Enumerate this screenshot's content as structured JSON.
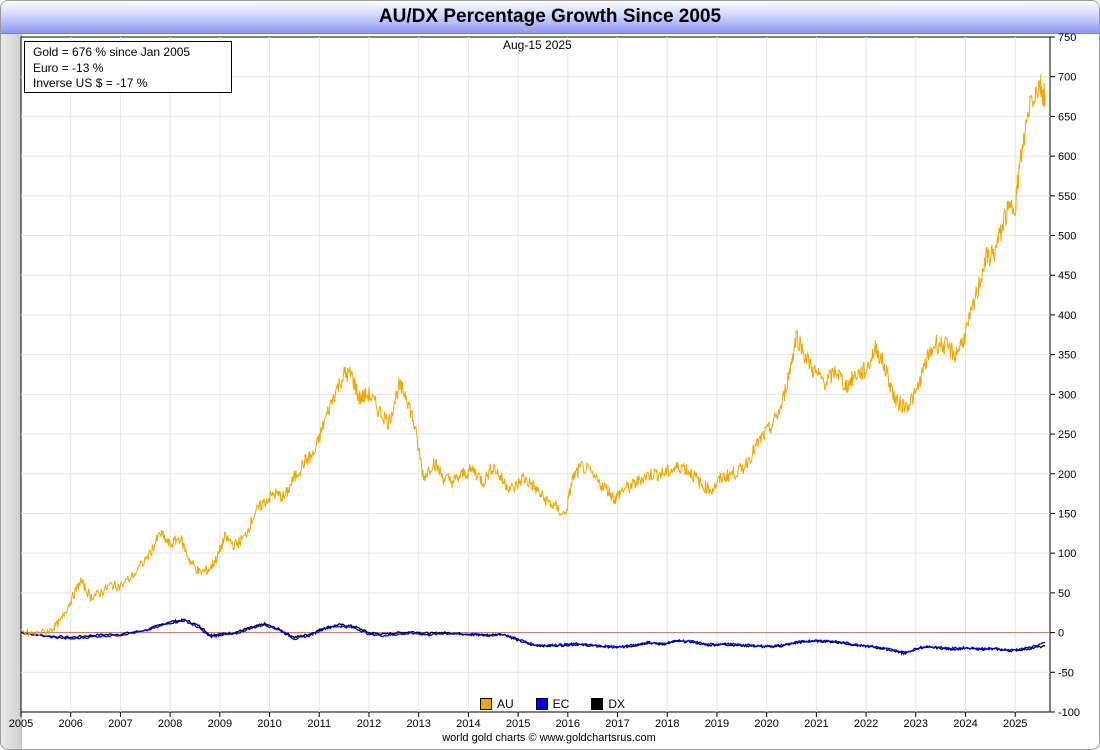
{
  "title": "AU/DX Percentage Growth Since 2005",
  "date": "Aug-15  2025",
  "info_box": {
    "line1": "Gold = 676 % since Jan 2005",
    "line2": "Euro = -13 %",
    "line3": "Inverse US $ = -17 %"
  },
  "footer": "world gold charts © www.goldchartsrus.com",
  "colors": {
    "AU": "#f0a800",
    "EC": "#0000ee",
    "DX": "#000000",
    "zero_line": "#c07070",
    "grid": "#e2e8ec"
  },
  "chart_data": {
    "type": "line",
    "title": "AU/DX Percentage Growth Since 2005",
    "xlabel": "",
    "ylabel": "",
    "xlim": [
      2005,
      2025.7
    ],
    "ylim": [
      -100,
      750
    ],
    "y_ticks": [
      -100,
      -50,
      0,
      50,
      100,
      150,
      200,
      250,
      300,
      350,
      400,
      450,
      500,
      550,
      600,
      650,
      700,
      750
    ],
    "x_ticks": [
      "2005",
      "2006",
      "2007",
      "2008",
      "2009",
      "2010",
      "2011",
      "2012",
      "2013",
      "2014",
      "2015",
      "2016",
      "2017",
      "2018",
      "2019",
      "2020",
      "2021",
      "2022",
      "2023",
      "2024",
      "2025"
    ],
    "grid": true,
    "legend_placement": "bottom-center",
    "series": [
      {
        "name": "AU",
        "x": [
          2005.0,
          2005.3,
          2005.6,
          2005.8,
          2006.0,
          2006.2,
          2006.4,
          2006.6,
          2006.8,
          2007.0,
          2007.3,
          2007.6,
          2007.8,
          2008.0,
          2008.2,
          2008.4,
          2008.6,
          2008.8,
          2008.95,
          2009.1,
          2009.3,
          2009.5,
          2009.7,
          2009.9,
          2010.1,
          2010.3,
          2010.5,
          2010.7,
          2010.9,
          2011.1,
          2011.3,
          2011.5,
          2011.65,
          2011.8,
          2012.0,
          2012.2,
          2012.4,
          2012.6,
          2012.75,
          2012.9,
          2013.1,
          2013.3,
          2013.5,
          2013.7,
          2013.9,
          2014.1,
          2014.3,
          2014.5,
          2014.7,
          2014.9,
          2015.1,
          2015.3,
          2015.5,
          2015.7,
          2015.95,
          2016.1,
          2016.3,
          2016.6,
          2016.8,
          2016.95,
          2017.1,
          2017.3,
          2017.5,
          2017.7,
          2017.9,
          2018.1,
          2018.3,
          2018.5,
          2018.7,
          2018.9,
          2019.1,
          2019.3,
          2019.5,
          2019.7,
          2019.9,
          2020.1,
          2020.3,
          2020.5,
          2020.6,
          2020.8,
          2021.0,
          2021.2,
          2021.4,
          2021.6,
          2021.8,
          2022.0,
          2022.2,
          2022.4,
          2022.6,
          2022.8,
          2023.0,
          2023.2,
          2023.4,
          2023.6,
          2023.8,
          2024.0,
          2024.2,
          2024.4,
          2024.6,
          2024.8,
          2025.0,
          2025.1,
          2025.3,
          2025.5,
          2025.6
        ],
        "values": [
          0,
          -2,
          3,
          15,
          40,
          65,
          45,
          50,
          60,
          58,
          75,
          100,
          125,
          110,
          120,
          90,
          75,
          80,
          95,
          120,
          110,
          120,
          150,
          165,
          175,
          170,
          195,
          215,
          225,
          265,
          300,
          325,
          325,
          295,
          300,
          280,
          265,
          310,
          300,
          265,
          195,
          215,
          195,
          190,
          200,
          205,
          190,
          210,
          190,
          180,
          195,
          185,
          170,
          160,
          148,
          195,
          210,
          190,
          180,
          168,
          180,
          185,
          195,
          200,
          200,
          205,
          210,
          200,
          185,
          180,
          195,
          200,
          205,
          225,
          245,
          260,
          285,
          340,
          375,
          345,
          325,
          315,
          330,
          310,
          325,
          330,
          360,
          330,
          290,
          285,
          300,
          340,
          365,
          360,
          350,
          375,
          420,
          470,
          480,
          525,
          540,
          590,
          670,
          690,
          676
        ]
      },
      {
        "name": "EC",
        "x": [
          2005.0,
          2005.5,
          2006.0,
          2006.5,
          2007.0,
          2007.5,
          2008.0,
          2008.3,
          2008.6,
          2008.8,
          2009.0,
          2009.3,
          2009.6,
          2009.9,
          2010.2,
          2010.5,
          2010.8,
          2011.1,
          2011.4,
          2011.7,
          2012.0,
          2012.3,
          2012.6,
          2012.9,
          2013.2,
          2013.5,
          2013.8,
          2014.1,
          2014.4,
          2014.7,
          2015.0,
          2015.3,
          2015.6,
          2015.9,
          2016.2,
          2016.5,
          2016.8,
          2017.0,
          2017.3,
          2017.6,
          2017.9,
          2018.2,
          2018.5,
          2018.8,
          2019.1,
          2019.4,
          2019.7,
          2020.0,
          2020.3,
          2020.6,
          2020.9,
          2021.2,
          2021.5,
          2021.8,
          2022.1,
          2022.4,
          2022.7,
          2022.8,
          2023.1,
          2023.4,
          2023.7,
          2024.0,
          2024.3,
          2024.6,
          2024.9,
          2025.2,
          2025.6
        ],
        "values": [
          0,
          -5,
          -8,
          -5,
          -3,
          2,
          12,
          15,
          5,
          -5,
          -3,
          -2,
          5,
          10,
          3,
          -8,
          -4,
          5,
          8,
          6,
          -2,
          -4,
          -2,
          -1,
          -3,
          -1,
          -2,
          -3,
          -4,
          -2,
          -8,
          -15,
          -16,
          -15,
          -14,
          -16,
          -17,
          -18,
          -16,
          -12,
          -14,
          -10,
          -11,
          -15,
          -14,
          -15,
          -16,
          -17,
          -16,
          -12,
          -10,
          -10,
          -12,
          -15,
          -17,
          -20,
          -24,
          -25,
          -18,
          -18,
          -20,
          -19,
          -20,
          -20,
          -22,
          -20,
          -13
        ]
      },
      {
        "name": "DX",
        "x": [
          2005.0,
          2005.5,
          2006.0,
          2006.5,
          2007.0,
          2007.5,
          2008.0,
          2008.3,
          2008.6,
          2008.8,
          2009.0,
          2009.3,
          2009.6,
          2009.9,
          2010.2,
          2010.5,
          2010.8,
          2011.1,
          2011.4,
          2011.7,
          2012.0,
          2012.3,
          2012.6,
          2012.9,
          2013.2,
          2013.5,
          2013.8,
          2014.1,
          2014.4,
          2014.7,
          2015.0,
          2015.3,
          2015.6,
          2015.9,
          2016.2,
          2016.5,
          2016.8,
          2017.0,
          2017.3,
          2017.6,
          2017.9,
          2018.2,
          2018.5,
          2018.8,
          2019.1,
          2019.4,
          2019.7,
          2020.0,
          2020.3,
          2020.6,
          2020.9,
          2021.2,
          2021.5,
          2021.8,
          2022.1,
          2022.4,
          2022.7,
          2022.8,
          2023.1,
          2023.4,
          2023.7,
          2024.0,
          2024.3,
          2024.6,
          2024.9,
          2025.2,
          2025.6
        ],
        "values": [
          0,
          -4,
          -6,
          -3,
          -2,
          3,
          14,
          16,
          8,
          -3,
          -2,
          0,
          6,
          11,
          4,
          -6,
          -2,
          6,
          10,
          8,
          0,
          -2,
          0,
          1,
          -1,
          0,
          -1,
          -2,
          -3,
          -2,
          -10,
          -16,
          -17,
          -16,
          -15,
          -17,
          -18,
          -19,
          -17,
          -13,
          -15,
          -11,
          -12,
          -16,
          -15,
          -16,
          -17,
          -18,
          -17,
          -13,
          -11,
          -11,
          -13,
          -16,
          -18,
          -21,
          -25,
          -26,
          -19,
          -19,
          -21,
          -20,
          -21,
          -21,
          -23,
          -21,
          -17
        ]
      }
    ]
  }
}
